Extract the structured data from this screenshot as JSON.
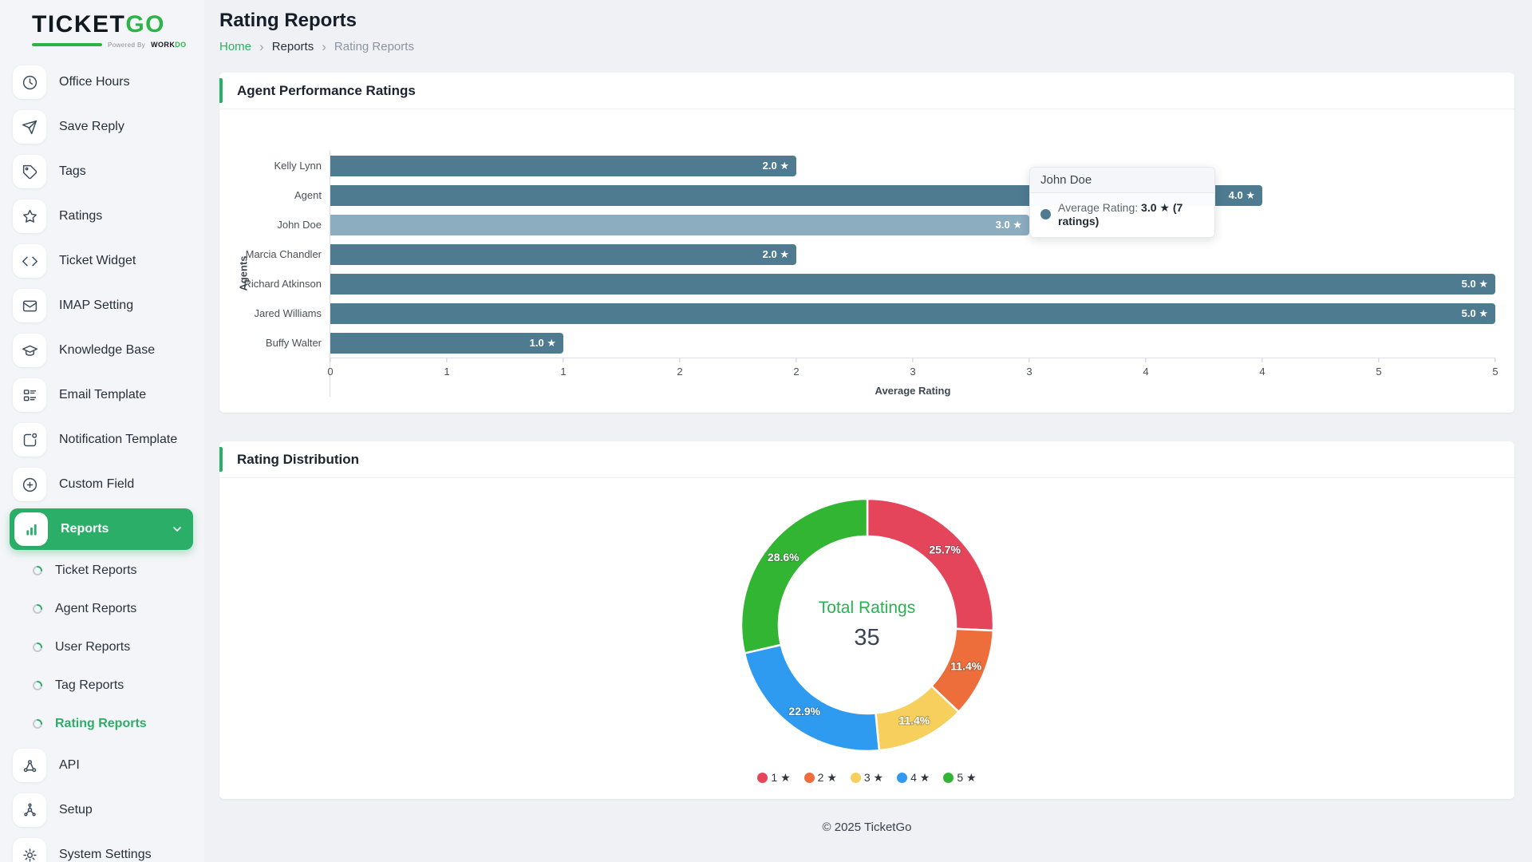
{
  "brand": {
    "logo_part1": "TICKET",
    "logo_part2": "GO",
    "powered_by": "Powered By",
    "workdo_dark": "WORK",
    "workdo_green": "DO"
  },
  "page": {
    "title": "Rating Reports",
    "breadcrumb": {
      "home": "Home",
      "mid": "Reports",
      "current": "Rating Reports"
    },
    "footer": "© 2025 TicketGo"
  },
  "colors": {
    "accent_green": "#2bae68",
    "bar": "#4e7b90",
    "bar_highlight": "#8cacc0"
  },
  "sidebar": {
    "items": [
      {
        "label": "Office Hours",
        "icon": "clock"
      },
      {
        "label": "Save Reply",
        "icon": "paper-plane"
      },
      {
        "label": "Tags",
        "icon": "tag"
      },
      {
        "label": "Ratings",
        "icon": "star"
      },
      {
        "label": "Ticket Widget",
        "icon": "code"
      },
      {
        "label": "IMAP Setting",
        "icon": "envelope"
      },
      {
        "label": "Knowledge Base",
        "icon": "graduation-cap"
      },
      {
        "label": "Email Template",
        "icon": "layout"
      },
      {
        "label": "Notification Template",
        "icon": "notification"
      },
      {
        "label": "Custom Field",
        "icon": "plus-circle"
      },
      {
        "label": "Reports",
        "icon": "bar-chart",
        "active": true,
        "expanded": true,
        "children": [
          {
            "label": "Ticket Reports"
          },
          {
            "label": "Agent Reports"
          },
          {
            "label": "User Reports"
          },
          {
            "label": "Tag Reports"
          },
          {
            "label": "Rating Reports",
            "active": true
          }
        ]
      },
      {
        "label": "API",
        "icon": "share-nodes"
      },
      {
        "label": "Setup",
        "icon": "hub"
      },
      {
        "label": "System Settings",
        "icon": "gear"
      }
    ]
  },
  "cards": {
    "agent_performance": {
      "title": "Agent Performance Ratings"
    },
    "rating_distribution": {
      "title": "Rating Distribution"
    }
  },
  "tooltip": {
    "title": "John Doe",
    "label": "Average Rating:",
    "value": "3.0 ★ (7 ratings)"
  },
  "chart_data": [
    {
      "type": "bar",
      "orientation": "horizontal",
      "title": "Agent Performance Ratings",
      "categories": [
        "Kelly Lynn",
        "Agent",
        "John Doe",
        "Marcia Chandler",
        "Richard Atkinson",
        "Jared Williams",
        "Buffy Walter"
      ],
      "values": [
        2.0,
        4.0,
        3.0,
        2.0,
        5.0,
        5.0,
        1.0
      ],
      "bar_labels": [
        "2.0 ★",
        "4.0 ★",
        "3.0 ★",
        "2.0 ★",
        "5.0 ★",
        "5.0 ★",
        "1.0 ★"
      ],
      "xlabel": "Average Rating",
      "ylabel": "Agents",
      "xlim": [
        0,
        5
      ],
      "x_ticks": [
        "0",
        "1",
        "1",
        "2",
        "2",
        "3",
        "3",
        "4",
        "4",
        "5",
        "5"
      ],
      "grid": false,
      "bar_color": "#4e7b90",
      "highlighted_index": 2,
      "highlight_color": "#8cacc0",
      "hovered_bar_tooltip": "John Doe — Average Rating: 3.0 ★ (7 ratings)"
    },
    {
      "type": "pie",
      "subtype": "donut",
      "title": "Rating Distribution",
      "center_label": "Total Ratings",
      "center_value": "35",
      "slices": [
        {
          "label": "1 ★",
          "pct": 25.7,
          "color": "#e5455a"
        },
        {
          "label": "2 ★",
          "pct": 11.4,
          "color": "#ed6d3b"
        },
        {
          "label": "3 ★",
          "pct": 11.4,
          "color": "#f7cf5c"
        },
        {
          "label": "4 ★",
          "pct": 22.9,
          "color": "#2e9bf0"
        },
        {
          "label": "5 ★",
          "pct": 28.6,
          "color": "#33b534"
        }
      ],
      "legend_position": "bottom",
      "start_angle_deg": 0,
      "direction": "clockwise"
    }
  ]
}
